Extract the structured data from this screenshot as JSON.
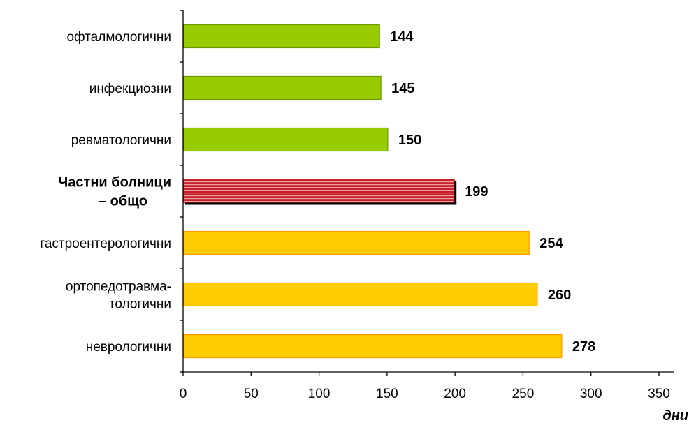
{
  "chart_data": {
    "type": "bar",
    "orientation": "horizontal",
    "categories": [
      [
        "офталмологични"
      ],
      [
        "инфекциозни"
      ],
      [
        "ревматологични"
      ],
      [
        "Частни болници",
        "– общо"
      ],
      [
        "гастроентерологични"
      ],
      [
        "ортопедотравма-",
        "тологични"
      ],
      [
        "неврологични"
      ]
    ],
    "values": [
      144,
      145,
      150,
      199,
      254,
      260,
      278
    ],
    "highlight_index": 3,
    "x_ticks": [
      "0",
      "50",
      "100",
      "150",
      "200",
      "250",
      "300",
      "350"
    ],
    "xlim": [
      0,
      350
    ],
    "xlabel": "дни",
    "ylabel": "",
    "title": "",
    "grid": false,
    "legend": "none",
    "colors": {
      "green_fill": "#99CC00",
      "green_stroke": "#669900",
      "yellow_fill": "#FFCC00",
      "yellow_stroke": "#FF9900",
      "red_fill": "#C8202A",
      "red_stripe": "#E8A0A0",
      "axis": "#000000"
    }
  }
}
